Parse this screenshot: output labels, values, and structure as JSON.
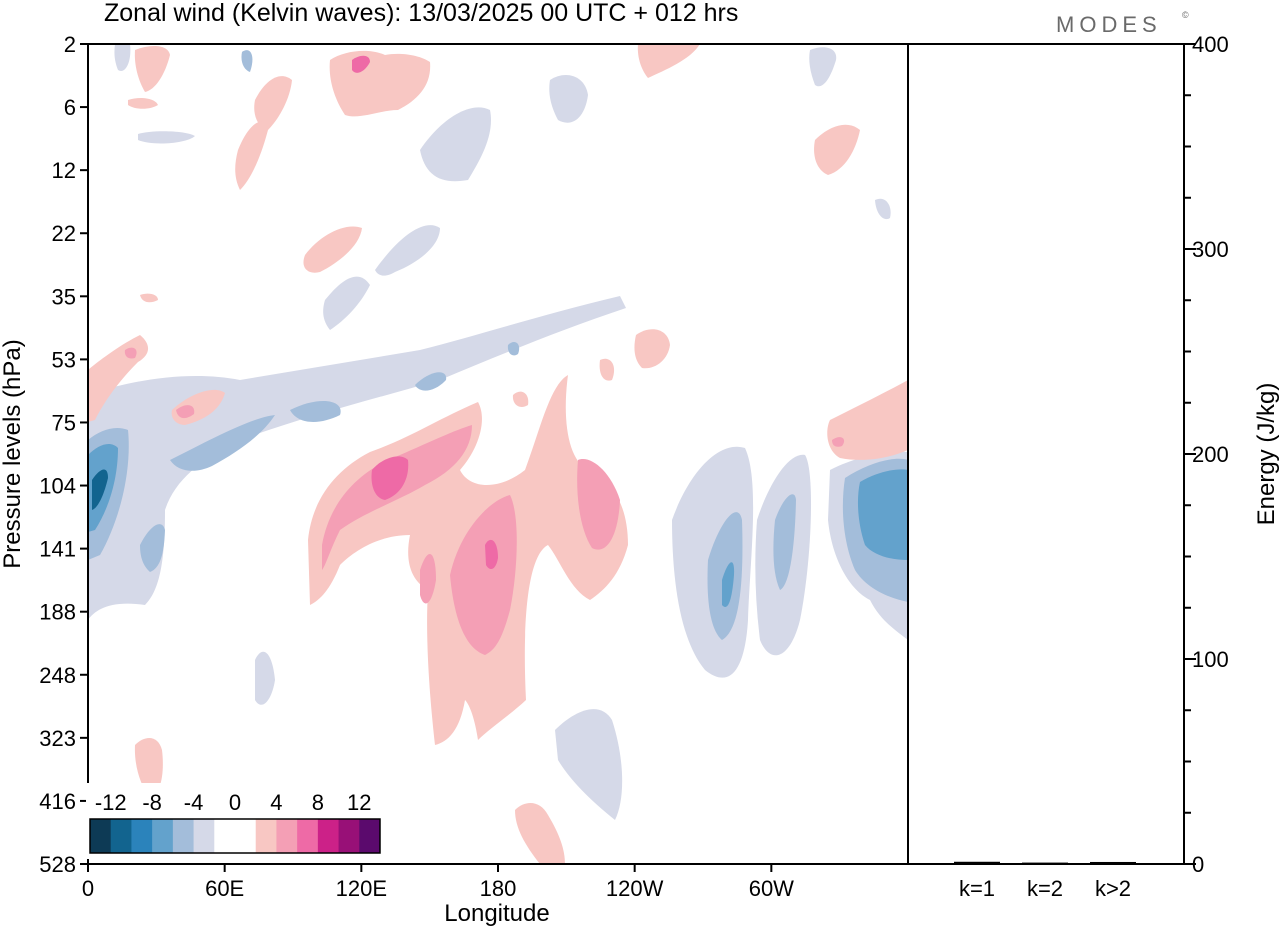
{
  "figure": {
    "title": "Zonal wind (Kelvin waves):  13/03/2025  00 UTC  + 012 hrs",
    "brand": "MODES",
    "brand_mark": "©"
  },
  "chart_data": [
    {
      "type": "heatmap",
      "title": "Zonal wind (Kelvin waves):  13/03/2025  00 UTC  + 012 hrs",
      "xlabel": "Longitude",
      "ylabel": "Pressure levels (hPa)",
      "x_ticks": [
        "0",
        "60E",
        "120E",
        "180",
        "120W",
        "60W"
      ],
      "y_ticks": [
        "2",
        "6",
        "12",
        "22",
        "35",
        "53",
        "75",
        "104",
        "141",
        "188",
        "248",
        "323",
        "416",
        "528"
      ],
      "y_axis": "pressure, top 2 hPa to bottom 528 hPa",
      "colorbar": {
        "labels": [
          "-12",
          "-8",
          "-4",
          "0",
          "4",
          "8",
          "12"
        ],
        "colors": [
          "#0d3a55",
          "#12648f",
          "#2b83bb",
          "#63a2cc",
          "#a3bdda",
          "#d5d9e8",
          "#ffffff",
          "#ffffff",
          "#f8c7c3",
          "#f49fb5",
          "#ee6aa6",
          "#cc2188",
          "#981077",
          "#5b0a6d"
        ]
      },
      "features": [
        {
          "sign": "positive",
          "level": "8",
          "lon": "120E-135E",
          "hPa": "90-110"
        },
        {
          "sign": "positive",
          "level": "8",
          "lon": "180",
          "hPa": "120-145"
        },
        {
          "sign": "negative",
          "level": "-12",
          "lon": "0-15E",
          "hPa": "80-120"
        },
        {
          "sign": "negative",
          "level": "-8",
          "lon": "100W-80W",
          "hPa": "110-150"
        }
      ]
    },
    {
      "type": "bar",
      "categories": [
        "k=1",
        "k=2",
        "k>2"
      ],
      "values": [
        0.6,
        0.2,
        0.5
      ],
      "ylabel": "Energy (J/kg)",
      "ylim": [
        0,
        400
      ],
      "y_ticks": [
        0,
        100,
        200,
        300,
        400
      ]
    }
  ]
}
